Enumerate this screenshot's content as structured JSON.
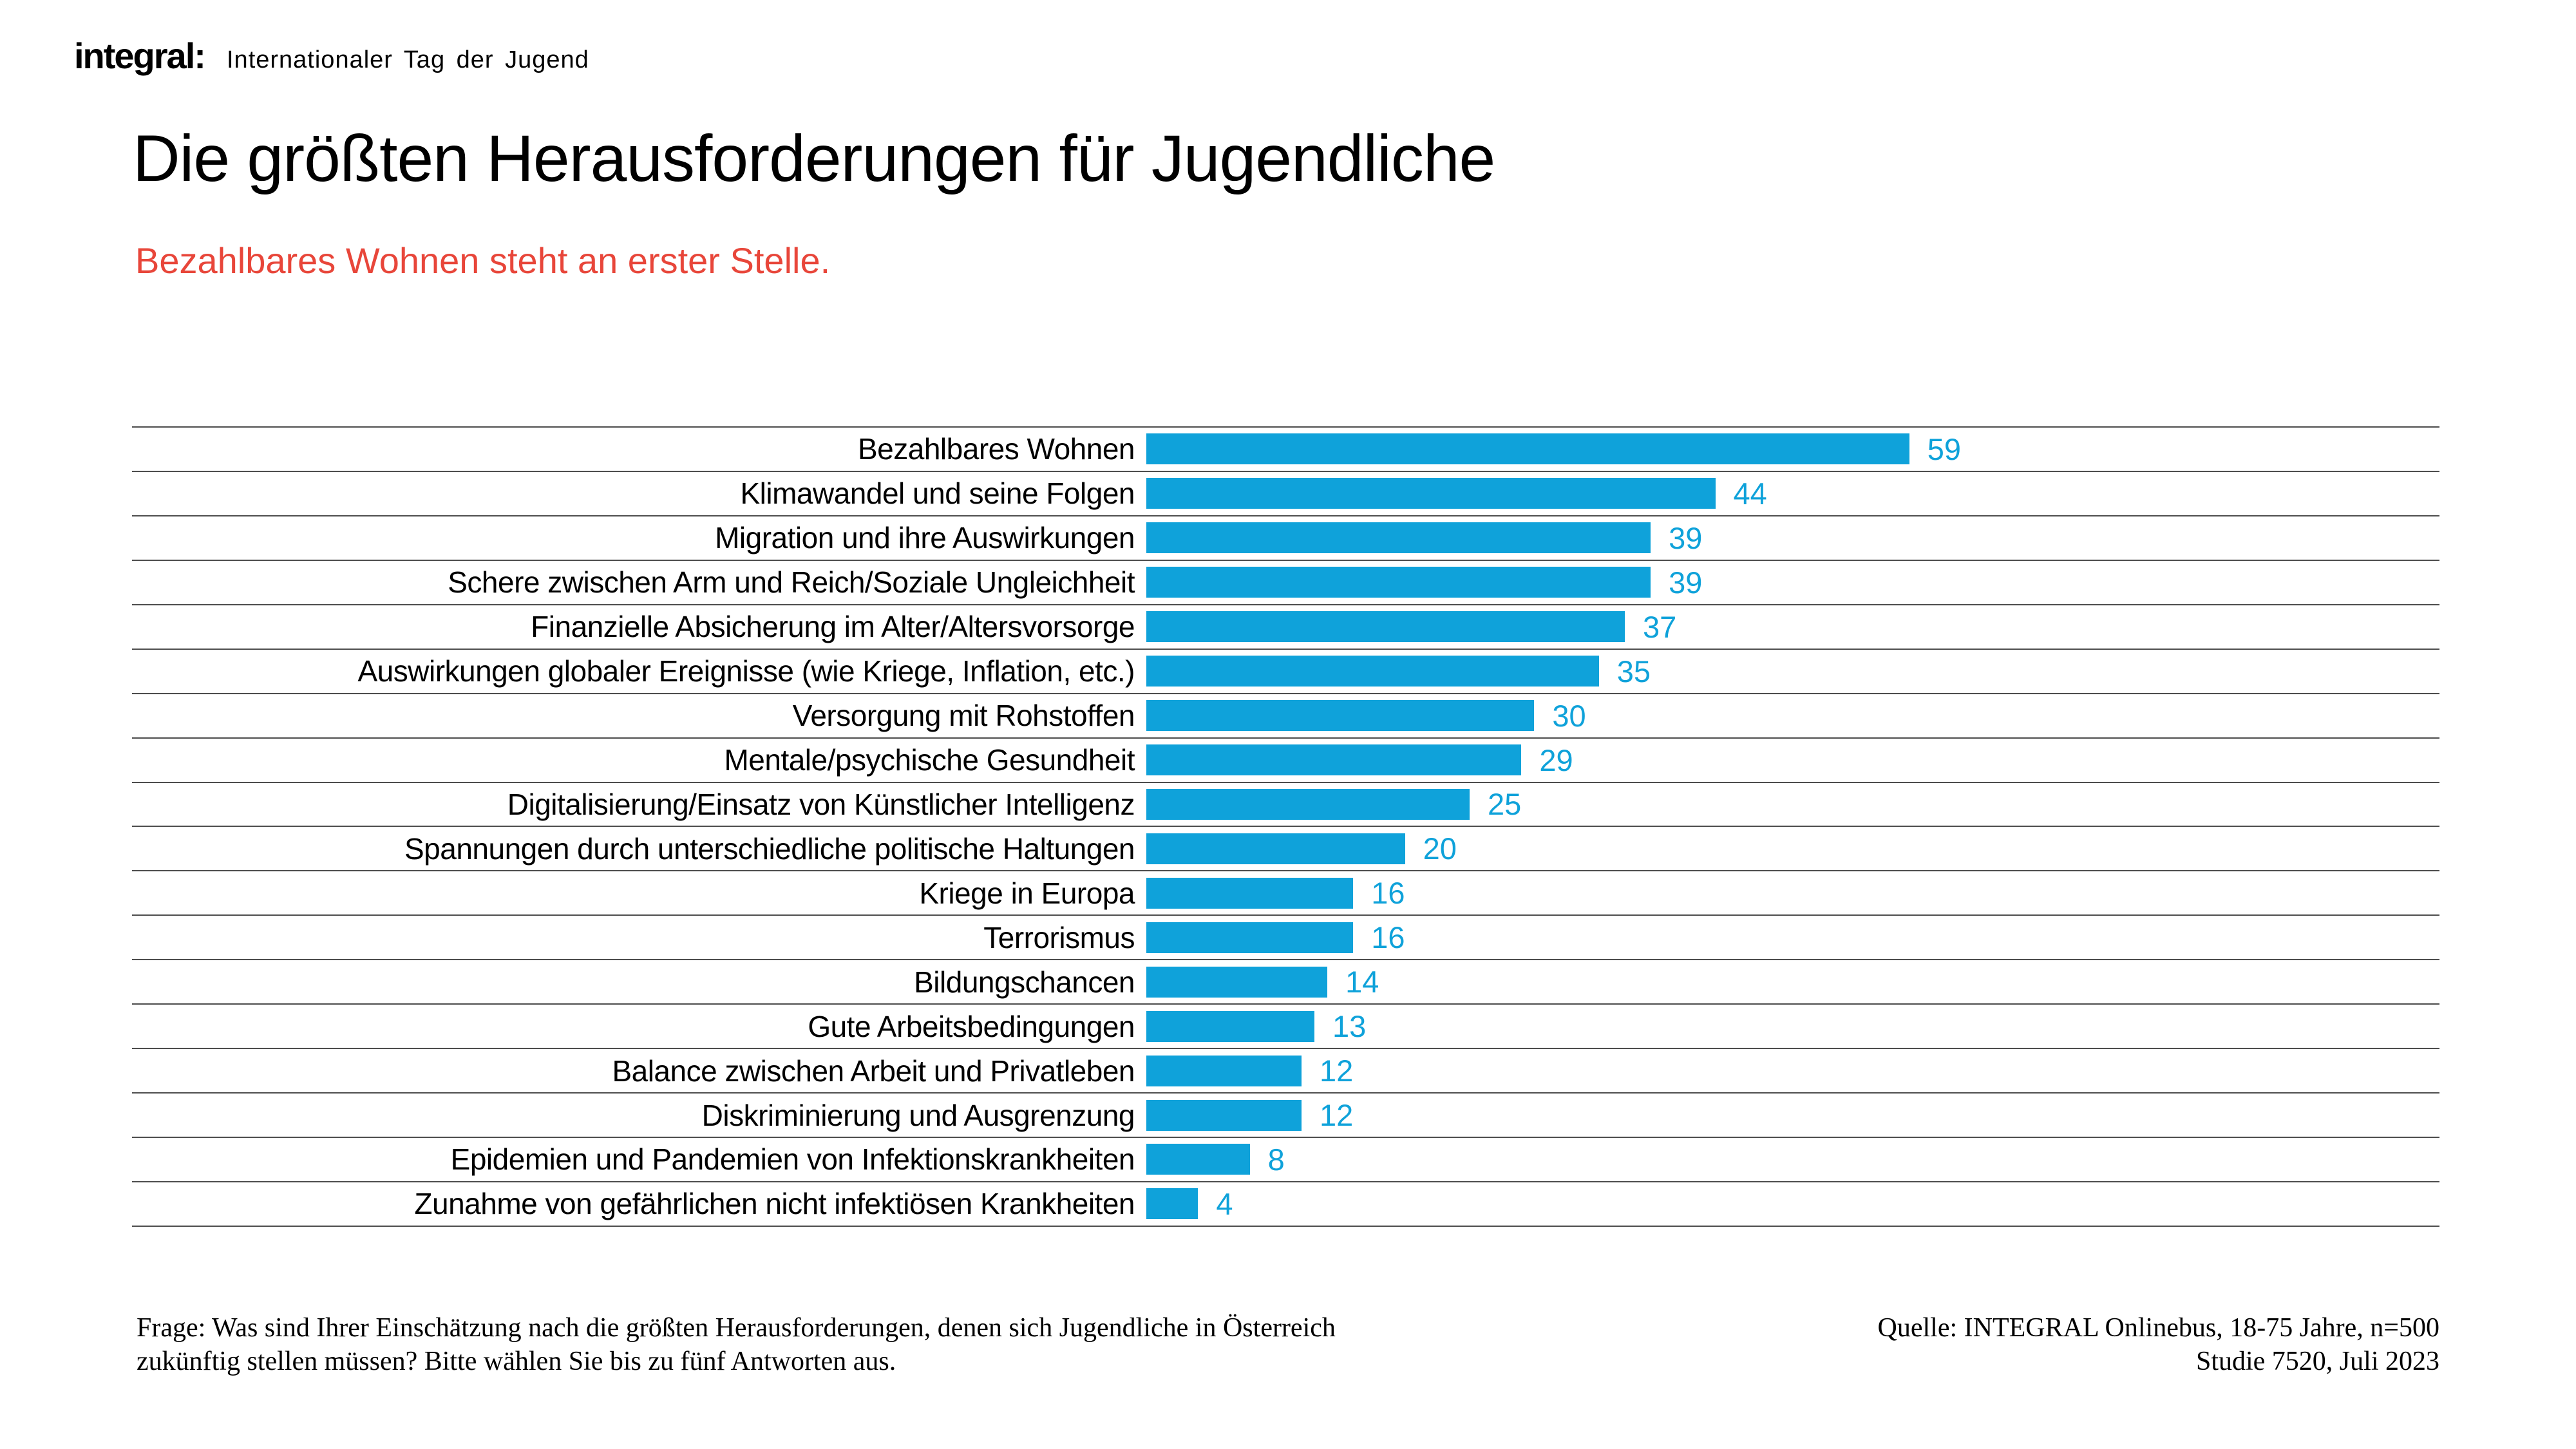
{
  "header": {
    "logo": "integral:",
    "event": "Internationaler Tag der Jugend"
  },
  "title": "Die größten Herausforderungen für Jugendliche",
  "subtitle": "Bezahlbares Wohnen steht an erster Stelle.",
  "chart_data": {
    "type": "bar",
    "orientation": "horizontal",
    "title": "Die größten Herausforderungen für Jugendliche",
    "categories": [
      "Bezahlbares Wohnen",
      "Klimawandel und seine Folgen",
      "Migration und ihre Auswirkungen",
      "Schere zwischen Arm und Reich/Soziale Ungleichheit",
      "Finanzielle Absicherung im Alter/Altersvorsorge",
      "Auswirkungen globaler Ereignisse (wie Kriege, Inflation, etc.)",
      "Versorgung mit Rohstoffen",
      "Mentale/psychische Gesundheit",
      "Digitalisierung/Einsatz von Künstlicher Intelligenz",
      "Spannungen durch unterschiedliche politische Haltungen",
      "Kriege in Europa",
      "Terrorismus",
      "Bildungschancen",
      "Gute Arbeitsbedingungen",
      "Balance zwischen Arbeit und Privatleben",
      "Diskriminierung und Ausgrenzung",
      "Epidemien und Pandemien von Infektionskrankheiten",
      "Zunahme von gefährlichen nicht infektiösen Krankheiten"
    ],
    "values": [
      59,
      44,
      39,
      39,
      37,
      35,
      30,
      29,
      25,
      20,
      16,
      16,
      14,
      13,
      12,
      12,
      8,
      4
    ],
    "xlim": [
      0,
      100
    ],
    "grid": "horizontal-row-separators",
    "legend": "none",
    "value_labels": "end-of-bar"
  },
  "colors": {
    "accent_blue": "#0fa2da",
    "subtitle_red": "#e8463a",
    "separator_gray": "#4d4d4d"
  },
  "footer": {
    "question_line1": "Frage: Was sind Ihrer Einschätzung nach die größten Herausforderungen, denen sich Jugendliche in Österreich",
    "question_line2": "zukünftig stellen müssen? Bitte wählen Sie bis zu fünf Antworten aus.",
    "source_line1": "Quelle: INTEGRAL Onlinebus, 18-75 Jahre, n=500",
    "source_line2": "Studie 7520, Juli 2023"
  }
}
